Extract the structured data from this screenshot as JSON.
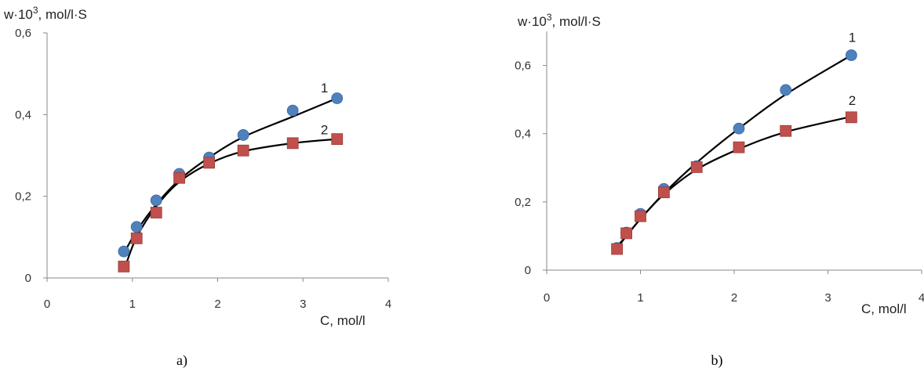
{
  "chart_data": [
    {
      "type": "scatter",
      "panel_label": "a)",
      "ylabel": "w·10³, mol/l·S",
      "ylabel_main": "w·10",
      "ylabel_sup": "3",
      "ylabel_rest": ", mol/l·S",
      "xlabel": "C, mol/l",
      "xlim": [
        0,
        4
      ],
      "ylim": [
        0,
        0.6
      ],
      "x_ticks": [
        0,
        1,
        2,
        3,
        4
      ],
      "x_tick_labels": [
        "0",
        "1",
        "2",
        "3",
        "4"
      ],
      "y_ticks": [
        0,
        0.2,
        0.4,
        0.6
      ],
      "y_tick_labels": [
        "0",
        "0,2",
        "0,4",
        "0,6"
      ],
      "grid": false,
      "series": [
        {
          "name": "1",
          "marker": "circle",
          "color": "#4f81bd",
          "x": [
            0.9,
            1.05,
            1.28,
            1.55,
            1.9,
            2.3,
            2.88,
            3.4
          ],
          "y": [
            0.065,
            0.125,
            0.19,
            0.255,
            0.295,
            0.35,
            0.41,
            0.44
          ],
          "fit": [
            [
              0.9,
              0.06
            ],
            [
              1.05,
              0.115
            ],
            [
              1.28,
              0.18
            ],
            [
              1.55,
              0.24
            ],
            [
              1.9,
              0.295
            ],
            [
              2.3,
              0.345
            ],
            [
              2.88,
              0.395
            ],
            [
              3.4,
              0.44
            ]
          ]
        },
        {
          "name": "2",
          "marker": "square",
          "color": "#c0504d",
          "x": [
            0.9,
            1.05,
            1.28,
            1.55,
            1.9,
            2.3,
            2.88,
            3.4
          ],
          "y": [
            0.028,
            0.097,
            0.16,
            0.245,
            0.282,
            0.312,
            0.33,
            0.34
          ],
          "fit": [
            [
              0.92,
              0.03
            ],
            [
              1.05,
              0.1
            ],
            [
              1.28,
              0.175
            ],
            [
              1.55,
              0.235
            ],
            [
              1.9,
              0.28
            ],
            [
              2.3,
              0.31
            ],
            [
              2.88,
              0.33
            ],
            [
              3.4,
              0.34
            ]
          ]
        }
      ]
    },
    {
      "type": "scatter",
      "panel_label": "b)",
      "ylabel": "w·10³, mol/l·S",
      "ylabel_main": "w·10",
      "ylabel_sup": "3",
      "ylabel_rest": ", mol/l·S",
      "xlabel": "C, mol/l",
      "xlim": [
        0,
        4
      ],
      "ylim": [
        0,
        0.7
      ],
      "x_ticks": [
        0,
        1,
        2,
        3,
        4
      ],
      "x_tick_labels": [
        "0",
        "1",
        "2",
        "3",
        "4"
      ],
      "y_ticks": [
        0,
        0.2,
        0.4,
        0.6
      ],
      "y_tick_labels": [
        "0",
        "0,2",
        "0,4",
        "0,6"
      ],
      "grid": false,
      "series": [
        {
          "name": "1",
          "marker": "circle",
          "color": "#4f81bd",
          "x": [
            0.75,
            0.85,
            1.0,
            1.25,
            1.6,
            2.05,
            2.55,
            3.25
          ],
          "y": [
            0.065,
            0.11,
            0.165,
            0.238,
            0.305,
            0.415,
            0.528,
            0.63
          ],
          "fit": [
            [
              0.75,
              0.07
            ],
            [
              0.85,
              0.1
            ],
            [
              1.0,
              0.15
            ],
            [
              1.25,
              0.225
            ],
            [
              1.6,
              0.315
            ],
            [
              2.05,
              0.415
            ],
            [
              2.55,
              0.515
            ],
            [
              3.25,
              0.63
            ]
          ]
        },
        {
          "name": "2",
          "marker": "square",
          "color": "#c0504d",
          "x": [
            0.75,
            0.85,
            1.0,
            1.25,
            1.6,
            2.05,
            2.55,
            3.25
          ],
          "y": [
            0.062,
            0.108,
            0.158,
            0.228,
            0.302,
            0.36,
            0.408,
            0.448
          ],
          "fit": [
            [
              0.75,
              0.065
            ],
            [
              0.85,
              0.1
            ],
            [
              1.0,
              0.15
            ],
            [
              1.25,
              0.222
            ],
            [
              1.6,
              0.295
            ],
            [
              2.05,
              0.355
            ],
            [
              2.55,
              0.405
            ],
            [
              3.25,
              0.45
            ]
          ]
        }
      ]
    }
  ]
}
